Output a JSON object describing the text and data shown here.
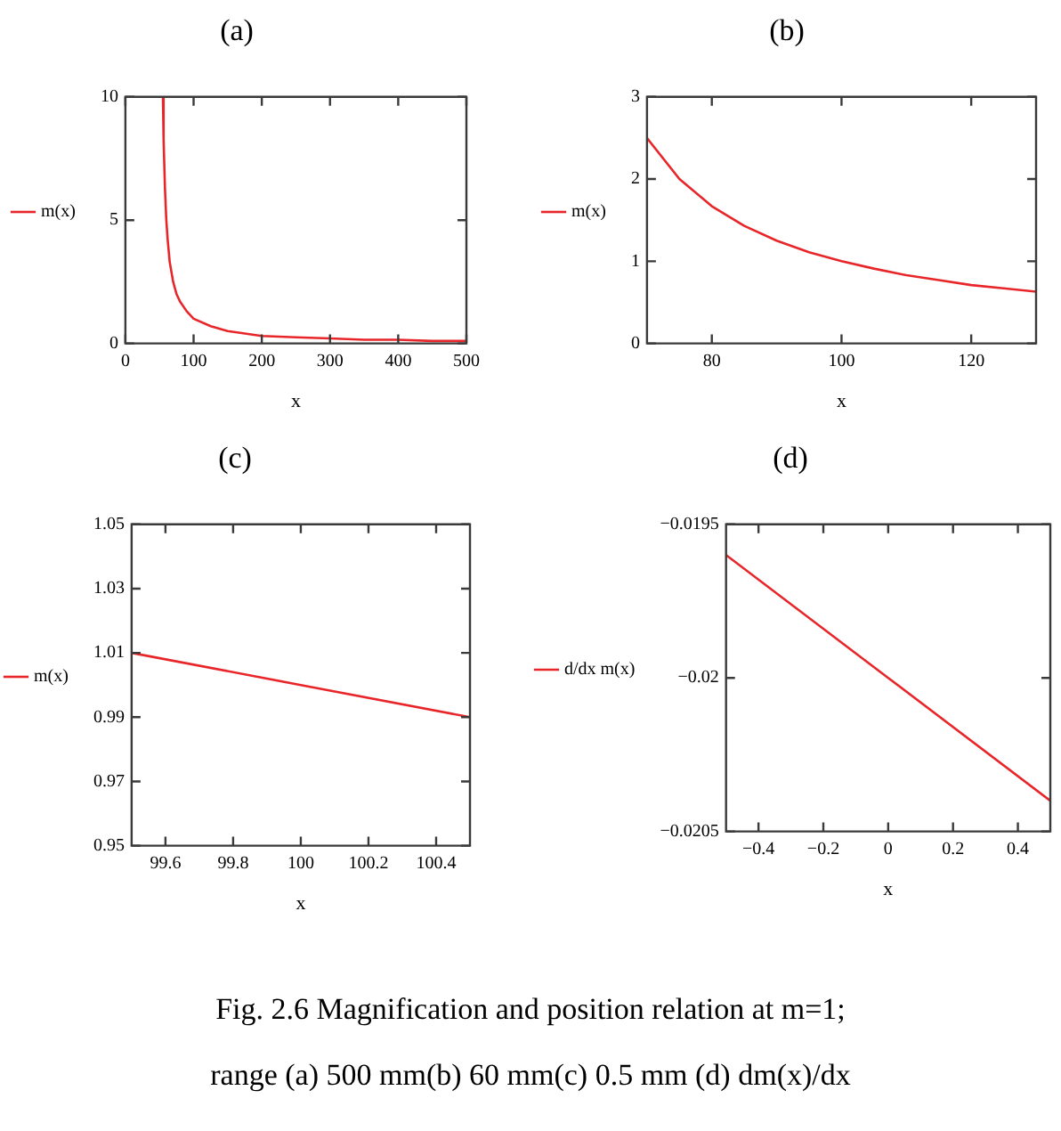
{
  "chart_data": [
    {
      "type": "line",
      "title": "(a)",
      "xlabel": "x",
      "x": [
        55,
        56,
        58,
        60,
        62,
        65,
        70,
        75,
        80,
        90,
        100,
        125,
        150,
        200,
        250,
        300,
        350,
        400,
        450,
        500
      ],
      "series": [
        {
          "name": "m(x)",
          "color": "#e8262a",
          "values": [
            10,
            8.3,
            6.3,
            5,
            4.2,
            3.3,
            2.5,
            2,
            1.7,
            1.3,
            1,
            0.7,
            0.5,
            0.3,
            0.25,
            0.2,
            0.15,
            0.15,
            0.1,
            0.1
          ]
        }
      ],
      "xlim": [
        0,
        500
      ],
      "xticks": [
        0,
        100,
        200,
        300,
        400,
        500
      ],
      "ylim": [
        0,
        10
      ],
      "yticks": [
        0,
        5,
        10
      ],
      "legend": "left",
      "marker": "none"
    },
    {
      "type": "line",
      "title": "(b)",
      "xlabel": "x",
      "x": [
        70,
        75,
        80,
        85,
        90,
        95,
        100,
        105,
        110,
        115,
        120,
        125,
        130
      ],
      "series": [
        {
          "name": "m(x)",
          "color": "#e8262a",
          "values": [
            2.5,
            2,
            1.67,
            1.43,
            1.25,
            1.11,
            1,
            0.91,
            0.83,
            0.77,
            0.71,
            0.67,
            0.63
          ]
        }
      ],
      "xlim": [
        70,
        130
      ],
      "xticks": [
        80,
        100,
        120
      ],
      "ylim": [
        0,
        3
      ],
      "yticks": [
        0,
        1,
        2,
        3
      ],
      "legend": "left",
      "marker": "none"
    },
    {
      "type": "line",
      "title": "(c)",
      "xlabel": "x",
      "x": [
        99.5,
        100,
        100.5
      ],
      "series": [
        {
          "name": "m(x)",
          "color": "#e8262a",
          "values": [
            1.01,
            1,
            0.99
          ]
        }
      ],
      "xlim": [
        99.5,
        100.5
      ],
      "xticks": [
        99.6,
        99.8,
        100,
        100.2,
        100.4
      ],
      "ylim": [
        0.95,
        1.05
      ],
      "yticks": [
        0.95,
        0.97,
        0.99,
        1.01,
        1.03,
        1.05
      ],
      "legend": "left",
      "marker": "none"
    },
    {
      "type": "line",
      "title": "(d)",
      "xlabel": "x",
      "x": [
        -0.5,
        0,
        0.5
      ],
      "series": [
        {
          "name": "d/dx m(x)",
          "color": "#e8262a",
          "values": [
            -0.0196,
            -0.02,
            -0.0204
          ]
        }
      ],
      "xlim": [
        -0.5,
        0.5
      ],
      "xticks": [
        {
          "value": -0.4,
          "label": "−0.4"
        },
        {
          "value": -0.2,
          "label": "−0.2"
        },
        0,
        0.2,
        0.4
      ],
      "ylim": [
        -0.0205,
        -0.0195
      ],
      "yticks": [
        {
          "value": -0.0205,
          "label": "−0.0205"
        },
        {
          "value": -0.02,
          "label": "−0.02"
        },
        {
          "value": -0.0195,
          "label": "−0.0195"
        }
      ],
      "legend": "left",
      "marker": "none",
      "annotations": [
        "Fig. 2.6 Magnification and position relation at m=1;",
        "range (a) 500 mm(b) 60 mm(c) 0.5 mm (d) dm(x)/dx"
      ]
    }
  ]
}
